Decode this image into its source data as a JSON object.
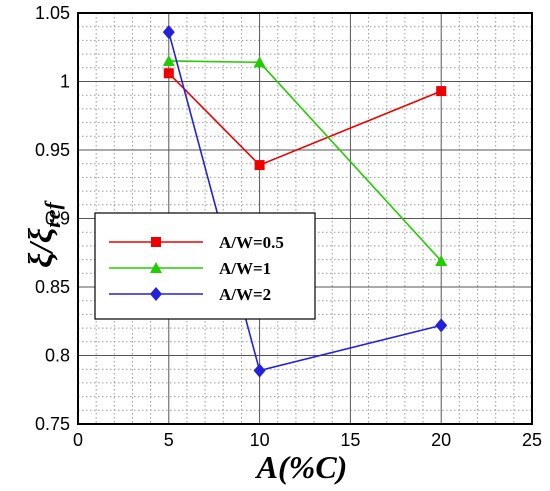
{
  "chart_data": {
    "type": "line",
    "title": "",
    "xlabel": "A(%C)",
    "ylabel": {
      "main": "ξ/ξ",
      "sub": "ref"
    },
    "xlim": [
      0,
      25
    ],
    "ylim": [
      0.75,
      1.05
    ],
    "xticks": [
      0,
      5,
      10,
      15,
      20,
      25
    ],
    "xtick_labels": [
      "0",
      "5",
      "10",
      "15",
      "20",
      "25"
    ],
    "yticks": [
      0.75,
      0.8,
      0.85,
      0.9,
      0.95,
      1.0,
      1.05
    ],
    "ytick_labels": [
      "0.75",
      "0.8",
      "0.85",
      "0.9",
      "0.95",
      "1",
      "1.05"
    ],
    "grid": "major solid, minor dotted",
    "legend_position": "lower-left",
    "series": [
      {
        "name": "A/W=0.5",
        "color": "#ee0000",
        "marker": "square",
        "x": [
          5,
          10,
          20
        ],
        "y": [
          1.006,
          0.939,
          0.993
        ]
      },
      {
        "name": "A/W=1",
        "color": "#22cc00",
        "marker": "triangle",
        "x": [
          5,
          10,
          20
        ],
        "y": [
          1.015,
          1.014,
          0.869
        ]
      },
      {
        "name": "A/W=2",
        "color": "#2222dd",
        "marker": "diamond",
        "x": [
          5,
          10,
          20
        ],
        "y": [
          1.036,
          0.789,
          0.822
        ]
      }
    ]
  }
}
